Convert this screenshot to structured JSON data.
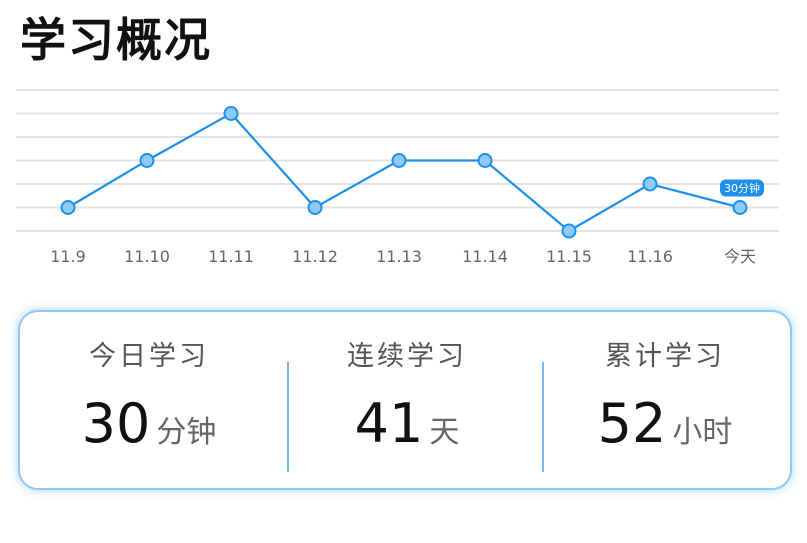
{
  "header": {
    "title": "学习概况"
  },
  "chart_data": {
    "type": "line",
    "title": "学习概况",
    "categories": [
      "11.9",
      "11.10",
      "11.11",
      "11.12",
      "11.13",
      "11.14",
      "11.15",
      "11.16",
      "今天"
    ],
    "values": [
      30,
      50,
      70,
      30,
      50,
      50,
      20,
      40,
      30
    ],
    "ylim": [
      20,
      80
    ],
    "grid": true,
    "annotation": {
      "index": 8,
      "text": "30分钟"
    },
    "colors": {
      "line": "#1e90ea",
      "marker_fill": "#8ecbf7",
      "grid": "#e3e3e3"
    }
  },
  "stats": [
    {
      "label": "今日学习",
      "value": "30",
      "unit": "分钟"
    },
    {
      "label": "连续学习",
      "value": "41",
      "unit": "天"
    },
    {
      "label": "累计学习",
      "value": "52",
      "unit": "小时"
    }
  ]
}
